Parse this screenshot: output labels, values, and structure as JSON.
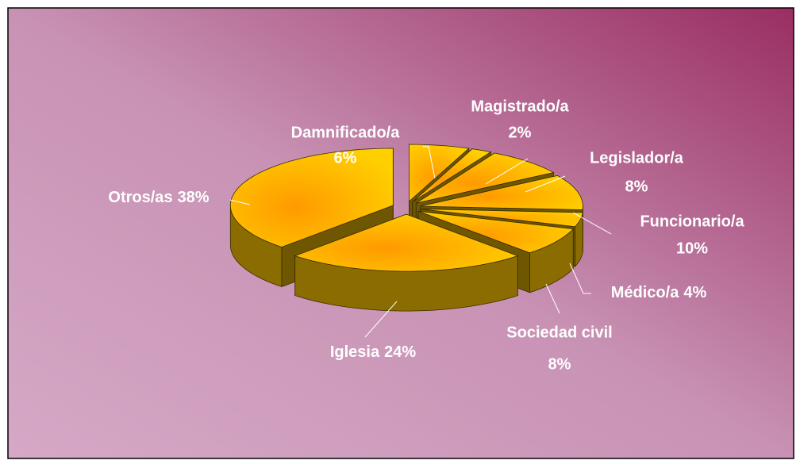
{
  "chart_data": {
    "type": "pie3d",
    "categories": [
      "Damnificado/a",
      "Magistrado/a",
      "Legislador/a",
      "Funcionario/a",
      "Médico/a",
      "Sociedad civil",
      "Iglesia",
      "Otros/as"
    ],
    "values": [
      6,
      2,
      8,
      10,
      4,
      8,
      24,
      38
    ],
    "value_labels": [
      "6%",
      "2%",
      "8%",
      "10%",
      "4%",
      "8%",
      "24%",
      "38%"
    ],
    "color": "#ffc400"
  }
}
